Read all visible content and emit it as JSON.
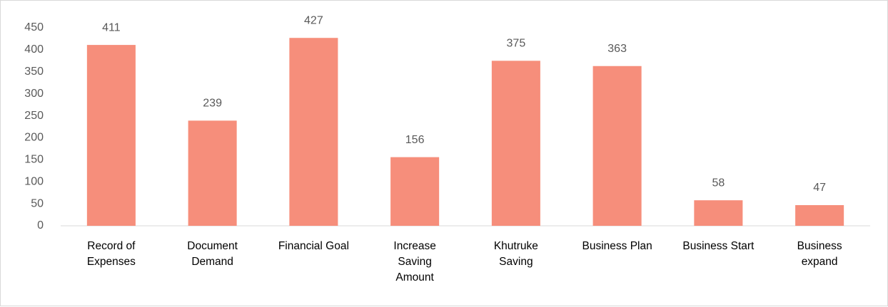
{
  "chart_data": {
    "type": "bar",
    "categories": [
      "Record of Expenses",
      "Document Demand",
      "Financial Goal",
      "Increase Saving Amount",
      "Khutruke Saving",
      "Business Plan",
      "Business Start",
      "Business expand"
    ],
    "values": [
      411,
      239,
      427,
      156,
      375,
      363,
      58,
      47
    ],
    "color": "#f68e7b",
    "ylim": [
      0,
      450
    ],
    "yticks": [
      0,
      50,
      100,
      150,
      200,
      250,
      300,
      350,
      400,
      450
    ],
    "grid": false
  }
}
